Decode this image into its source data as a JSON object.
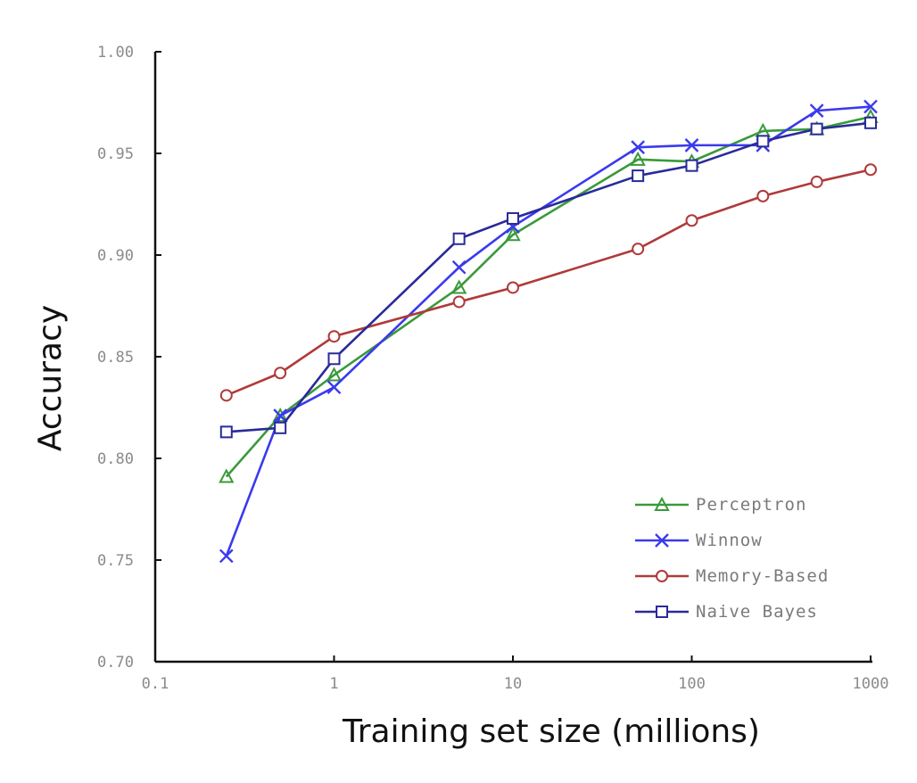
{
  "chart_data": {
    "type": "line",
    "title": "",
    "xlabel": "Training set size (millions)",
    "ylabel": "Accuracy",
    "x_scale": "log",
    "xlim": [
      0.1,
      1000
    ],
    "ylim": [
      0.7,
      1.0
    ],
    "x_ticks": [
      0.1,
      1,
      10,
      100,
      1000
    ],
    "x_tick_labels": [
      "0.1",
      "1",
      "10",
      "100",
      "1000"
    ],
    "y_ticks": [
      0.7,
      0.75,
      0.8,
      0.85,
      0.9,
      0.95,
      1.0
    ],
    "y_tick_labels": [
      "0.70",
      "0.75",
      "0.80",
      "0.85",
      "0.90",
      "0.95",
      "1.00"
    ],
    "grid": false,
    "legend_position": "bottom-right",
    "series": [
      {
        "name": "Perceptron",
        "color": "#3a9a3a",
        "marker": "triangle",
        "x": [
          0.25,
          0.5,
          1,
          5,
          10,
          50,
          100,
          250,
          500,
          1000
        ],
        "y": [
          0.791,
          0.821,
          0.841,
          0.884,
          0.91,
          0.947,
          0.946,
          0.961,
          0.962,
          0.968
        ]
      },
      {
        "name": "Winnow",
        "color": "#3a3aee",
        "marker": "x",
        "x": [
          0.25,
          0.5,
          1,
          5,
          10,
          50,
          100,
          250,
          500,
          1000
        ],
        "y": [
          0.752,
          0.821,
          0.835,
          0.894,
          0.914,
          0.953,
          0.954,
          0.954,
          0.971,
          0.973
        ]
      },
      {
        "name": "Memory-Based",
        "color": "#b03a3a",
        "marker": "circle",
        "x": [
          0.25,
          0.5,
          1,
          5,
          10,
          50,
          100,
          250,
          500,
          1000
        ],
        "y": [
          0.831,
          0.842,
          0.86,
          0.877,
          0.884,
          0.903,
          0.917,
          0.929,
          0.936,
          0.942
        ]
      },
      {
        "name": "Naive Bayes",
        "color": "#2a2a9a",
        "marker": "square",
        "x": [
          0.25,
          0.5,
          1,
          5,
          10,
          50,
          100,
          250,
          500,
          1000
        ],
        "y": [
          0.813,
          0.815,
          0.849,
          0.908,
          0.918,
          0.939,
          0.944,
          0.956,
          0.962,
          0.965
        ]
      }
    ]
  }
}
